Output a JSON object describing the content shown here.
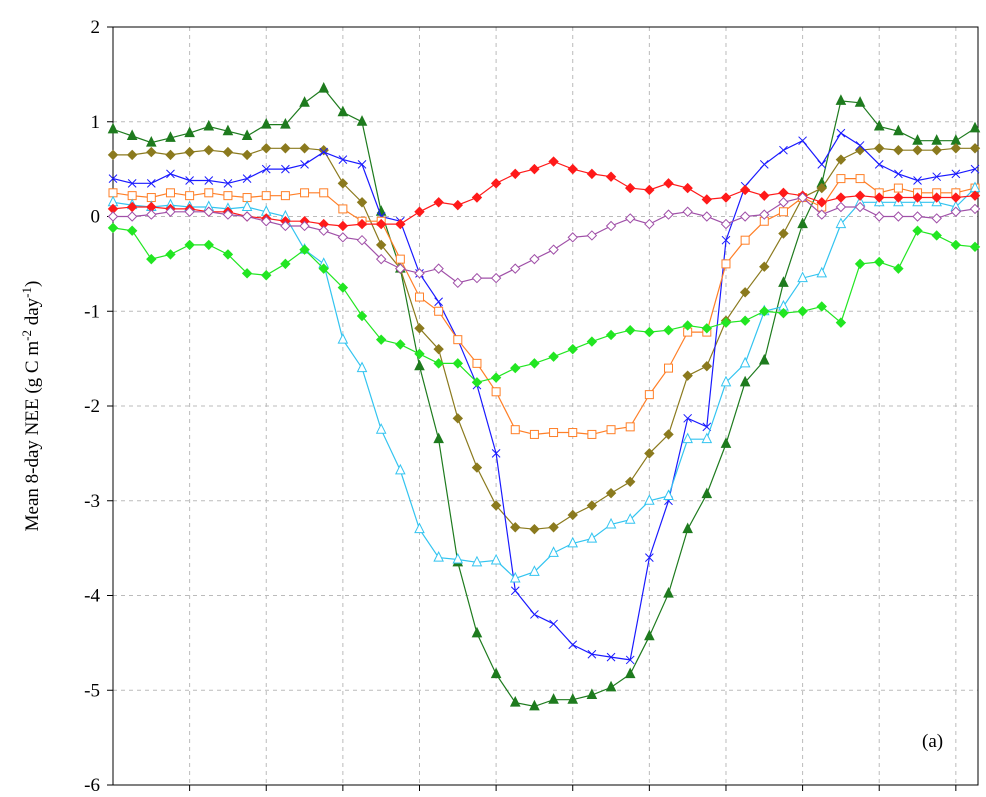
{
  "chart_data": {
    "type": "line",
    "ylabel": [
      "Mean 8-day NEE (g C m",
      "-2",
      " day",
      "-1",
      ")"
    ],
    "annotation": "(a)",
    "ylim": [
      -6,
      2
    ],
    "yticks": [
      -6,
      -5,
      -4,
      -3,
      -2,
      -1,
      0,
      1,
      2
    ],
    "grid": true,
    "series": [
      {
        "color": "#1e7b1e",
        "marker": "triangle",
        "filled": true,
        "values": [
          0.92,
          0.85,
          0.78,
          0.83,
          0.88,
          0.95,
          0.9,
          0.85,
          0.97,
          0.97,
          1.2,
          1.35,
          1.1,
          1.0,
          0.05,
          -0.55,
          -1.58,
          -2.35,
          -3.65,
          -4.4,
          -4.83,
          -5.13,
          -5.17,
          -5.1,
          -5.1,
          -5.05,
          -4.97,
          -4.83,
          -4.43,
          -3.98,
          -3.3,
          -2.93,
          -2.4,
          -1.75,
          -1.52,
          -0.7,
          -0.08,
          0.35,
          1.22,
          1.2,
          0.95,
          0.9,
          0.8,
          0.8,
          0.8,
          0.93
        ]
      },
      {
        "color": "#8b7a1e",
        "marker": "diamond",
        "filled": true,
        "values": [
          0.65,
          0.65,
          0.68,
          0.65,
          0.68,
          0.7,
          0.68,
          0.65,
          0.72,
          0.72,
          0.72,
          0.7,
          0.35,
          0.15,
          -0.3,
          -0.55,
          -1.18,
          -1.4,
          -2.13,
          -2.65,
          -3.05,
          -3.28,
          -3.3,
          -3.28,
          -3.15,
          -3.05,
          -2.92,
          -2.8,
          -2.5,
          -2.3,
          -1.68,
          -1.58,
          -1.1,
          -0.8,
          -0.53,
          -0.18,
          0.2,
          0.3,
          0.6,
          0.7,
          0.72,
          0.7,
          0.7,
          0.7,
          0.72,
          0.72
        ]
      },
      {
        "color": "#1a1aff",
        "marker": "x",
        "filled": false,
        "values": [
          0.4,
          0.35,
          0.35,
          0.45,
          0.38,
          0.38,
          0.35,
          0.4,
          0.5,
          0.5,
          0.55,
          0.68,
          0.6,
          0.55,
          0.0,
          -0.05,
          -0.6,
          -0.9,
          -1.3,
          -1.78,
          -2.5,
          -3.95,
          -4.2,
          -4.3,
          -4.52,
          -4.62,
          -4.65,
          -4.68,
          -3.6,
          -3.0,
          -2.13,
          -2.22,
          -0.25,
          0.32,
          0.55,
          0.7,
          0.8,
          0.55,
          0.88,
          0.75,
          0.55,
          0.45,
          0.38,
          0.42,
          0.45,
          0.5
        ]
      },
      {
        "color": "#ff7f27",
        "marker": "square",
        "filled": false,
        "values": [
          0.25,
          0.22,
          0.2,
          0.25,
          0.22,
          0.25,
          0.22,
          0.2,
          0.22,
          0.22,
          0.25,
          0.25,
          0.08,
          -0.05,
          -0.05,
          -0.45,
          -0.85,
          -1.0,
          -1.3,
          -1.55,
          -1.85,
          -2.25,
          -2.3,
          -2.28,
          -2.28,
          -2.3,
          -2.25,
          -2.22,
          -1.88,
          -1.6,
          -1.22,
          -1.22,
          -0.5,
          -0.25,
          -0.05,
          0.05,
          0.2,
          0.1,
          0.4,
          0.4,
          0.25,
          0.3,
          0.25,
          0.25,
          0.25,
          0.3
        ]
      },
      {
        "color": "#33c4f0",
        "marker": "triangle",
        "filled": false,
        "values": [
          0.15,
          0.12,
          0.1,
          0.12,
          0.1,
          0.1,
          0.08,
          0.1,
          0.05,
          0.0,
          -0.35,
          -0.5,
          -1.3,
          -1.6,
          -2.25,
          -2.68,
          -3.3,
          -3.6,
          -3.62,
          -3.65,
          -3.63,
          -3.82,
          -3.75,
          -3.55,
          -3.45,
          -3.4,
          -3.25,
          -3.2,
          -3.0,
          -2.95,
          -2.35,
          -2.35,
          -1.75,
          -1.55,
          -1.0,
          -0.95,
          -0.65,
          -0.6,
          -0.08,
          0.15,
          0.15,
          0.15,
          0.15,
          0.15,
          0.1,
          0.3
        ]
      },
      {
        "color": "#ff1a1a",
        "marker": "diamond",
        "filled": true,
        "values": [
          0.08,
          0.1,
          0.1,
          0.08,
          0.08,
          0.05,
          0.05,
          0.0,
          -0.02,
          -0.05,
          -0.05,
          -0.08,
          -0.1,
          -0.08,
          -0.08,
          -0.08,
          0.05,
          0.15,
          0.12,
          0.2,
          0.35,
          0.45,
          0.5,
          0.58,
          0.5,
          0.45,
          0.42,
          0.3,
          0.28,
          0.35,
          0.3,
          0.18,
          0.2,
          0.28,
          0.22,
          0.25,
          0.22,
          0.15,
          0.2,
          0.22,
          0.2,
          0.2,
          0.2,
          0.2,
          0.2,
          0.22
        ]
      },
      {
        "color": "#a050a8",
        "marker": "diamond",
        "filled": false,
        "values": [
          0.0,
          0.0,
          0.02,
          0.05,
          0.05,
          0.05,
          0.02,
          0.0,
          -0.05,
          -0.1,
          -0.1,
          -0.15,
          -0.22,
          -0.25,
          -0.45,
          -0.55,
          -0.6,
          -0.55,
          -0.7,
          -0.65,
          -0.65,
          -0.55,
          -0.45,
          -0.35,
          -0.22,
          -0.2,
          -0.1,
          -0.02,
          -0.08,
          0.02,
          0.05,
          0.0,
          -0.08,
          0.0,
          0.02,
          0.15,
          0.2,
          0.02,
          0.1,
          0.1,
          0.0,
          0.0,
          0.0,
          -0.02,
          0.05,
          0.08
        ]
      },
      {
        "color": "#22e622",
        "marker": "diamond",
        "filled": true,
        "values": [
          -0.12,
          -0.15,
          -0.45,
          -0.4,
          -0.3,
          -0.3,
          -0.4,
          -0.6,
          -0.62,
          -0.5,
          -0.35,
          -0.55,
          -0.75,
          -1.05,
          -1.3,
          -1.35,
          -1.45,
          -1.55,
          -1.55,
          -1.75,
          -1.7,
          -1.6,
          -1.55,
          -1.48,
          -1.4,
          -1.32,
          -1.25,
          -1.2,
          -1.22,
          -1.2,
          -1.15,
          -1.18,
          -1.12,
          -1.1,
          -1.0,
          -1.02,
          -1.0,
          -0.95,
          -1.12,
          -0.5,
          -0.48,
          -0.55,
          -0.15,
          -0.2,
          -0.3,
          -0.32
        ]
      }
    ]
  }
}
